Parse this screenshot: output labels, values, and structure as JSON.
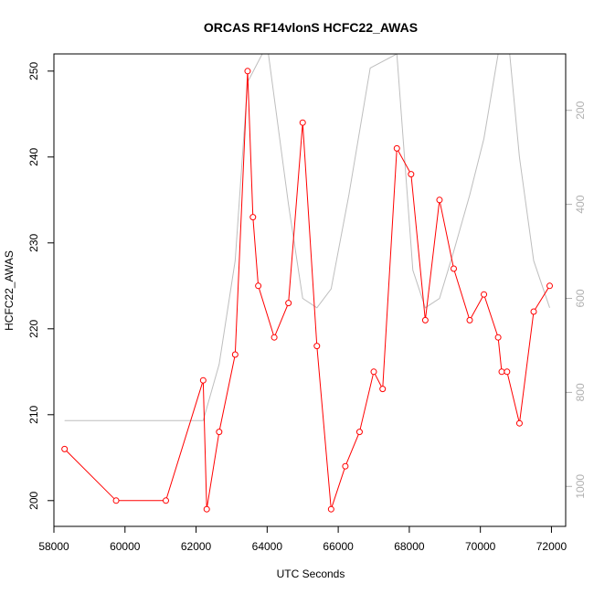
{
  "chart_data": {
    "type": "line",
    "title": "ORCAS RF14vlonS HCFC22_AWAS",
    "xlabel": "UTC Seconds",
    "ylabel": "HCFC22_AWAS",
    "xlim": [
      58000,
      72400
    ],
    "ylim": [
      197,
      252
    ],
    "x_ticks": [
      58000,
      60000,
      62000,
      64000,
      66000,
      68000,
      70000,
      72000
    ],
    "y_ticks": [
      200,
      210,
      220,
      230,
      240,
      250
    ],
    "y2_ticks": [
      200,
      400,
      600,
      800,
      1000
    ],
    "y2_reversed": true,
    "y2_range": [
      80,
      1085
    ],
    "grid": false,
    "legend": "none",
    "series": [
      {
        "color": "#ff0000",
        "marker": "open-circle",
        "x": [
          58300,
          59750,
          61150,
          62200,
          62300,
          62650,
          63100,
          63450,
          63600,
          63750,
          64200,
          64600,
          65000,
          65400,
          65800,
          66200,
          66600,
          67000,
          67250,
          67650,
          68050,
          68450,
          68850,
          69250,
          69700,
          70100,
          70500,
          70600,
          70750,
          71100,
          71500,
          71950
        ],
        "values": [
          206,
          200,
          200,
          214,
          199,
          208,
          217,
          250,
          233,
          225,
          219,
          223,
          244,
          218,
          199,
          204,
          208,
          215,
          213,
          241,
          238,
          221,
          235,
          227,
          221,
          224,
          219,
          215,
          215,
          209,
          222,
          225
        ]
      },
      {
        "color": "#bebebe",
        "marker": "none",
        "axis": "right",
        "x": [
          58300,
          62200,
          62650,
          63100,
          63450,
          64000,
          64600,
          65000,
          65400,
          65800,
          66300,
          66900,
          67650,
          68100,
          68450,
          68850,
          69250,
          69700,
          70100,
          70500,
          70800,
          71100,
          71500,
          71950
        ],
        "values": [
          860,
          860,
          740,
          520,
          140,
          60,
          400,
          600,
          620,
          580,
          380,
          110,
          80,
          540,
          620,
          600,
          500,
          380,
          260,
          80,
          60,
          300,
          520,
          620
        ]
      }
    ]
  }
}
